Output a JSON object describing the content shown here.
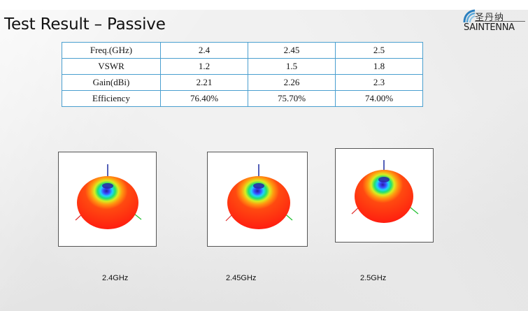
{
  "title": "Test Result – Passive",
  "logo": {
    "cn": "圣丹纳",
    "en": "SAINTENNA"
  },
  "table": {
    "rows": [
      [
        "Freq.(GHz)",
        "2.4",
        "2.45",
        "2.5"
      ],
      [
        "VSWR",
        "1.2",
        "1.5",
        "1.8"
      ],
      [
        "Gain(dBi)",
        "2.21",
        "2.26",
        "2.3"
      ],
      [
        "Efficiency",
        "76.40%",
        "75.70%",
        "74.00%"
      ]
    ]
  },
  "plots": [
    {
      "caption": "2.4GHz",
      "icon": "radiation-pattern-3d"
    },
    {
      "caption": "2.45GHz",
      "icon": "radiation-pattern-3d"
    },
    {
      "caption": "2.5GHz",
      "icon": "radiation-pattern-3d"
    }
  ]
}
